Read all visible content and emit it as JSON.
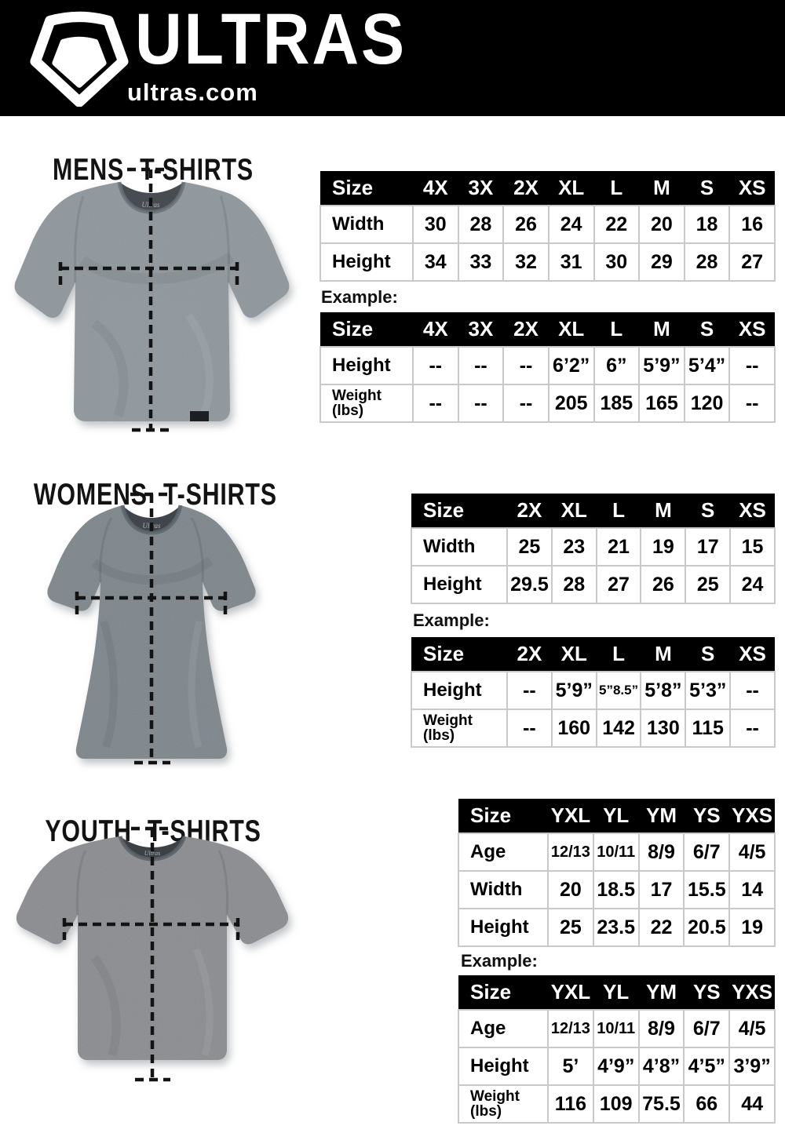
{
  "header": {
    "brand": "ULTRAS",
    "domain": "ultras.com",
    "logo_icon": "pentagon-shield-icon",
    "bg": "#000000",
    "fg": "#ffffff"
  },
  "colors": {
    "table_header_bg": "#000000",
    "table_header_fg": "#ffffff",
    "table_border": "#c9c9c9",
    "text": "#111111",
    "mens_shirt": "#8e979d",
    "womens_shirt": "#7d868c",
    "youth_shirt": "#8b8c90"
  },
  "sections": [
    {
      "id": "mens",
      "title": "MENS T-SHIRTS",
      "example_label": "Example:",
      "size_table": {
        "header": [
          "Size",
          "4X",
          "3X",
          "2X",
          "XL",
          "L",
          "M",
          "S",
          "XS"
        ],
        "rows": [
          {
            "label": "Width",
            "values": [
              "30",
              "28",
              "26",
              "24",
              "22",
              "20",
              "18",
              "16"
            ]
          },
          {
            "label": "Height",
            "values": [
              "34",
              "33",
              "32",
              "31",
              "30",
              "29",
              "28",
              "27"
            ]
          }
        ]
      },
      "example_table": {
        "header": [
          "Size",
          "4X",
          "3X",
          "2X",
          "XL",
          "L",
          "M",
          "S",
          "XS"
        ],
        "rows": [
          {
            "label": "Height",
            "values": [
              "--",
              "--",
              "--",
              "6’2”",
              "6”",
              "5’9”",
              "5’4”",
              "--"
            ]
          },
          {
            "label": "Weight (lbs)",
            "values": [
              "--",
              "--",
              "--",
              "205",
              "185",
              "165",
              "120",
              "--"
            ]
          }
        ]
      }
    },
    {
      "id": "womens",
      "title": "WOMENS T-SHIRTS",
      "example_label": "Example:",
      "size_table": {
        "header": [
          "Size",
          "2X",
          "XL",
          "L",
          "M",
          "S",
          "XS"
        ],
        "rows": [
          {
            "label": "Width",
            "values": [
              "25",
              "23",
              "21",
              "19",
              "17",
              "15"
            ]
          },
          {
            "label": "Height",
            "values": [
              "29.5",
              "28",
              "27",
              "26",
              "25",
              "24"
            ]
          }
        ]
      },
      "example_table": {
        "header": [
          "Size",
          "2X",
          "XL",
          "L",
          "M",
          "S",
          "XS"
        ],
        "rows": [
          {
            "label": "Height",
            "values": [
              "--",
              "5’9”",
              "5”8.5”",
              "5’8”",
              "5’3”",
              "--"
            ]
          },
          {
            "label": "Weight (lbs)",
            "values": [
              "--",
              "160",
              "142",
              "130",
              "115",
              "--"
            ]
          }
        ]
      }
    },
    {
      "id": "youth",
      "title": "YOUTH T-SHIRTS",
      "example_label": "Example:",
      "size_table": {
        "header": [
          "Size",
          "YXL",
          "YL",
          "YM",
          "YS",
          "YXS"
        ],
        "rows": [
          {
            "label": "Age",
            "values": [
              "12/13",
              "10/11",
              "8/9",
              "6/7",
              "4/5"
            ]
          },
          {
            "label": "Width",
            "values": [
              "20",
              "18.5",
              "17",
              "15.5",
              "14"
            ]
          },
          {
            "label": "Height",
            "values": [
              "25",
              "23.5",
              "22",
              "20.5",
              "19"
            ]
          }
        ]
      },
      "example_table": {
        "header": [
          "Size",
          "YXL",
          "YL",
          "YM",
          "YS",
          "YXS"
        ],
        "rows": [
          {
            "label": "Age",
            "values": [
              "12/13",
              "10/11",
              "8/9",
              "6/7",
              "4/5"
            ]
          },
          {
            "label": "Height",
            "values": [
              "5’",
              "4’9”",
              "4’8”",
              "4’5”",
              "3’9”"
            ]
          },
          {
            "label": "Weight (lbs)",
            "values": [
              "116",
              "109",
              "75.5",
              "66",
              "44"
            ]
          }
        ]
      }
    }
  ]
}
